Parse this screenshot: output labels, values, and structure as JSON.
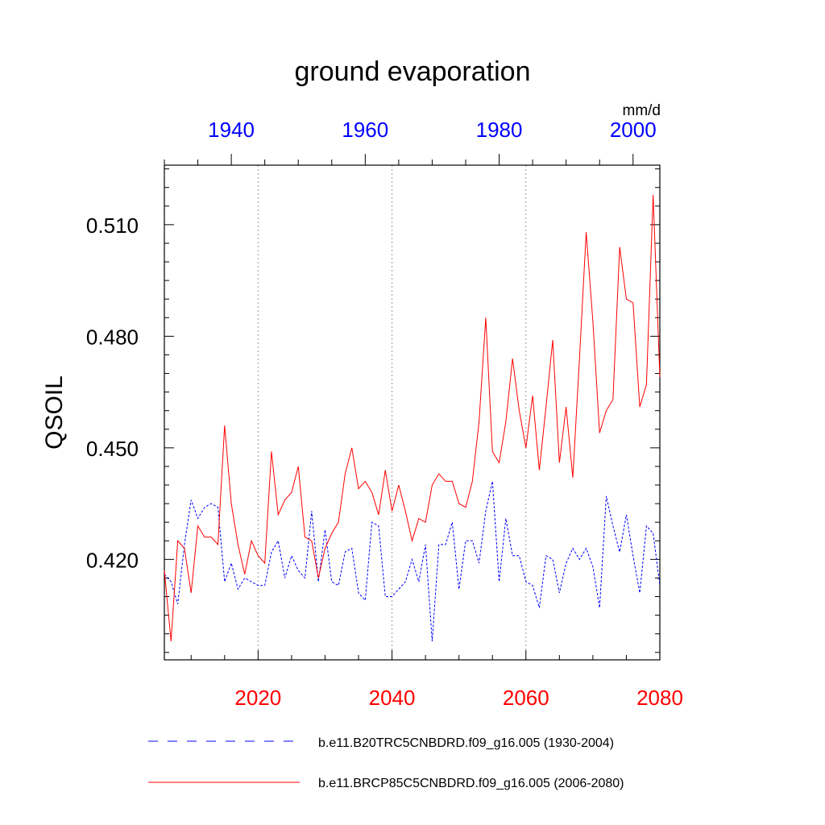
{
  "chart_data": {
    "type": "line",
    "title": "ground evaporation",
    "ylabel": "QSOIL",
    "units": "mm/d",
    "ylim": [
      0.393,
      0.526
    ],
    "y_ticks": [
      0.42,
      0.45,
      0.48,
      0.51
    ],
    "y_tick_labels": [
      "0.420",
      "0.450",
      "0.480",
      "0.510"
    ],
    "x_bottom": {
      "range": [
        2006,
        2080
      ],
      "ticks": [
        2020,
        2040,
        2060,
        2080
      ],
      "labels": [
        "2020",
        "2040",
        "2060",
        "2080"
      ],
      "color": "#ff0000"
    },
    "x_top": {
      "range": [
        1930,
        2004
      ],
      "ticks": [
        1940,
        1960,
        1980,
        2000
      ],
      "labels": [
        "1940",
        "1960",
        "1980",
        "2000"
      ],
      "color": "#0000ff"
    },
    "series": [
      {
        "name": "b.e11.B20TRC5CNBDRD.f09_g16.005 (1930-2004)",
        "axis": "top",
        "color": "#0000ff",
        "style": "dashed",
        "x": [
          1930,
          1931,
          1932,
          1933,
          1934,
          1935,
          1936,
          1937,
          1938,
          1939,
          1940,
          1941,
          1942,
          1943,
          1944,
          1945,
          1946,
          1947,
          1948,
          1949,
          1950,
          1951,
          1952,
          1953,
          1954,
          1955,
          1956,
          1957,
          1958,
          1959,
          1960,
          1961,
          1962,
          1963,
          1964,
          1965,
          1966,
          1967,
          1968,
          1969,
          1970,
          1971,
          1972,
          1973,
          1974,
          1975,
          1976,
          1977,
          1978,
          1979,
          1980,
          1981,
          1982,
          1983,
          1984,
          1985,
          1986,
          1987,
          1988,
          1989,
          1990,
          1991,
          1992,
          1993,
          1994,
          1995,
          1996,
          1997,
          1998,
          1999,
          2000,
          2001,
          2002,
          2003,
          2004
        ],
        "values": [
          0.416,
          0.414,
          0.408,
          0.424,
          0.436,
          0.431,
          0.434,
          0.435,
          0.434,
          0.414,
          0.419,
          0.412,
          0.415,
          0.414,
          0.413,
          0.413,
          0.422,
          0.425,
          0.415,
          0.421,
          0.417,
          0.415,
          0.433,
          0.414,
          0.428,
          0.414,
          0.413,
          0.422,
          0.423,
          0.411,
          0.409,
          0.43,
          0.429,
          0.41,
          0.41,
          0.412,
          0.414,
          0.42,
          0.414,
          0.424,
          0.398,
          0.424,
          0.424,
          0.43,
          0.412,
          0.425,
          0.425,
          0.419,
          0.433,
          0.441,
          0.414,
          0.431,
          0.421,
          0.421,
          0.414,
          0.413,
          0.407,
          0.421,
          0.42,
          0.411,
          0.419,
          0.423,
          0.42,
          0.423,
          0.418,
          0.407,
          0.437,
          0.429,
          0.422,
          0.432,
          0.421,
          0.411,
          0.429,
          0.427,
          0.413
        ]
      },
      {
        "name": "b.e11.BRCP85C5CNBDRD.f09_g16.005 (2006-2080)",
        "axis": "bottom",
        "color": "#ff0000",
        "style": "solid",
        "x": [
          2006,
          2007,
          2008,
          2009,
          2010,
          2011,
          2012,
          2013,
          2014,
          2015,
          2016,
          2017,
          2018,
          2019,
          2020,
          2021,
          2022,
          2023,
          2024,
          2025,
          2026,
          2027,
          2028,
          2029,
          2030,
          2031,
          2032,
          2033,
          2034,
          2035,
          2036,
          2037,
          2038,
          2039,
          2040,
          2041,
          2042,
          2043,
          2044,
          2045,
          2046,
          2047,
          2048,
          2049,
          2050,
          2051,
          2052,
          2053,
          2054,
          2055,
          2056,
          2057,
          2058,
          2059,
          2060,
          2061,
          2062,
          2063,
          2064,
          2065,
          2066,
          2067,
          2068,
          2069,
          2070,
          2071,
          2072,
          2073,
          2074,
          2075,
          2076,
          2077,
          2078,
          2079,
          2080
        ],
        "values": [
          0.417,
          0.398,
          0.425,
          0.423,
          0.411,
          0.429,
          0.426,
          0.426,
          0.424,
          0.456,
          0.435,
          0.424,
          0.416,
          0.425,
          0.421,
          0.419,
          0.449,
          0.432,
          0.436,
          0.438,
          0.445,
          0.426,
          0.425,
          0.415,
          0.423,
          0.427,
          0.43,
          0.443,
          0.45,
          0.439,
          0.441,
          0.438,
          0.432,
          0.444,
          0.433,
          0.44,
          0.433,
          0.425,
          0.431,
          0.43,
          0.44,
          0.443,
          0.441,
          0.441,
          0.435,
          0.434,
          0.441,
          0.457,
          0.485,
          0.449,
          0.446,
          0.457,
          0.474,
          0.46,
          0.45,
          0.464,
          0.444,
          0.461,
          0.479,
          0.446,
          0.461,
          0.442,
          0.474,
          0.508,
          0.484,
          0.454,
          0.46,
          0.463,
          0.504,
          0.49,
          0.489,
          0.461,
          0.467,
          0.518,
          0.469
        ]
      }
    ]
  }
}
